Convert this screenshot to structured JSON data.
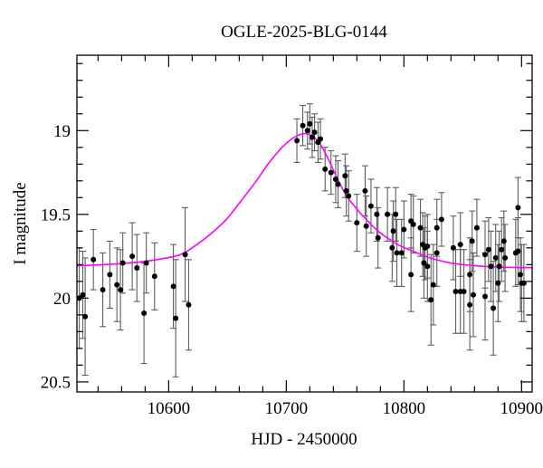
{
  "chart_data": {
    "type": "scatter",
    "title": "OGLE-2025-BLG-0144",
    "xlabel": "HJD - 2450000",
    "ylabel": "I magnitude",
    "xlim": [
      10522,
      10909
    ],
    "ylim": [
      20.56,
      18.55
    ],
    "y_inverted": true,
    "grid": false,
    "legend": "none",
    "x_major_ticks": [
      {
        "v": 10600,
        "label": "10600"
      },
      {
        "v": 10700,
        "label": "10700"
      },
      {
        "v": 10800,
        "label": "10800"
      },
      {
        "v": 10900,
        "label": "10900"
      }
    ],
    "x_minor_step": 20,
    "y_major_ticks": [
      {
        "v": 19.0,
        "label": "19"
      },
      {
        "v": 19.5,
        "label": "19.5"
      },
      {
        "v": 20.0,
        "label": "20"
      },
      {
        "v": 20.5,
        "label": "20.5"
      }
    ],
    "y_minor_step": 0.1,
    "colors": {
      "model_curve": "#ff00ff",
      "data_point": "#000000",
      "error_bar": "#5e5e5e",
      "frame": "#000000",
      "background": "#ffffff"
    },
    "model_curve": [
      [
        10522,
        19.807
      ],
      [
        10545,
        19.8
      ],
      [
        10570,
        19.788
      ],
      [
        10590,
        19.77
      ],
      [
        10610,
        19.74
      ],
      [
        10623,
        19.685
      ],
      [
        10636,
        19.615
      ],
      [
        10649,
        19.53
      ],
      [
        10661,
        19.425
      ],
      [
        10674,
        19.305
      ],
      [
        10685,
        19.195
      ],
      [
        10695,
        19.11
      ],
      [
        10703,
        19.058
      ],
      [
        10710,
        19.028
      ],
      [
        10716,
        19.018
      ],
      [
        10722,
        19.032
      ],
      [
        10728,
        19.072
      ],
      [
        10735,
        19.16
      ],
      [
        10742,
        19.265
      ],
      [
        10748,
        19.35
      ],
      [
        10754,
        19.415
      ],
      [
        10762,
        19.485
      ],
      [
        10770,
        19.545
      ],
      [
        10778,
        19.6
      ],
      [
        10788,
        19.65
      ],
      [
        10796,
        19.685
      ],
      [
        10806,
        19.715
      ],
      [
        10814,
        19.738
      ],
      [
        10826,
        19.768
      ],
      [
        10842,
        19.793
      ],
      [
        10858,
        19.805
      ],
      [
        10875,
        19.813
      ],
      [
        10892,
        19.817
      ],
      [
        10909,
        19.818
      ]
    ],
    "points": [
      [
        10524,
        20.0,
        0.3
      ],
      [
        10527,
        19.98,
        0.26
      ],
      [
        10529,
        20.11,
        0.35
      ],
      [
        10536,
        19.77,
        0.18
      ],
      [
        10544,
        19.95,
        0.22
      ],
      [
        10550,
        19.86,
        0.2
      ],
      [
        10556,
        19.92,
        0.22
      ],
      [
        10559,
        19.95,
        0.24
      ],
      [
        10561,
        19.79,
        0.18
      ],
      [
        10569,
        19.75,
        0.2
      ],
      [
        10573,
        19.82,
        0.2
      ],
      [
        10579,
        20.09,
        0.3
      ],
      [
        10581,
        19.79,
        0.18
      ],
      [
        10588,
        19.87,
        0.2
      ],
      [
        10604,
        19.93,
        0.25
      ],
      [
        10606,
        20.12,
        0.35
      ],
      [
        10614,
        19.74,
        0.28
      ],
      [
        10617,
        20.04,
        0.27
      ],
      [
        10709,
        19.06,
        0.13
      ],
      [
        10714,
        18.97,
        0.12
      ],
      [
        10718,
        19.0,
        0.11
      ],
      [
        10720,
        18.96,
        0.12
      ],
      [
        10722,
        19.04,
        0.12
      ],
      [
        10724,
        19.01,
        0.11
      ],
      [
        10727,
        19.07,
        0.12
      ],
      [
        10729,
        19.05,
        0.12
      ],
      [
        10733,
        19.23,
        0.13
      ],
      [
        10738,
        19.25,
        0.13
      ],
      [
        10742,
        19.29,
        0.14
      ],
      [
        10744,
        19.32,
        0.14
      ],
      [
        10750,
        19.27,
        0.13
      ],
      [
        10751,
        19.36,
        0.15
      ],
      [
        10753,
        19.39,
        0.15
      ],
      [
        10760,
        19.55,
        0.17
      ],
      [
        10767,
        19.36,
        0.15
      ],
      [
        10768,
        19.57,
        0.18
      ],
      [
        10772,
        19.45,
        0.16
      ],
      [
        10777,
        19.5,
        0.16
      ],
      [
        10778,
        19.64,
        0.18
      ],
      [
        10786,
        19.5,
        0.16
      ],
      [
        10790,
        19.7,
        0.2
      ],
      [
        10791,
        19.6,
        0.18
      ],
      [
        10793,
        19.5,
        0.16
      ],
      [
        10794,
        19.73,
        0.2
      ],
      [
        10798,
        19.73,
        0.2
      ],
      [
        10800,
        19.59,
        0.17
      ],
      [
        10806,
        19.54,
        0.16
      ],
      [
        10806,
        19.86,
        0.22
      ],
      [
        10808,
        19.56,
        0.17
      ],
      [
        10814,
        19.58,
        0.17
      ],
      [
        10816,
        19.68,
        0.19
      ],
      [
        10817,
        19.79,
        0.21
      ],
      [
        10818,
        19.7,
        0.19
      ],
      [
        10820,
        19.69,
        0.19
      ],
      [
        10820,
        19.81,
        0.21
      ],
      [
        10823,
        20.01,
        0.27
      ],
      [
        10825,
        19.92,
        0.24
      ],
      [
        10828,
        19.58,
        0.17
      ],
      [
        10828,
        19.73,
        0.2
      ],
      [
        10832,
        19.53,
        0.16
      ],
      [
        10842,
        19.7,
        0.19
      ],
      [
        10844,
        19.96,
        0.25
      ],
      [
        10848,
        19.68,
        0.19
      ],
      [
        10848,
        19.96,
        0.25
      ],
      [
        10851,
        19.96,
        0.25
      ],
      [
        10856,
        19.86,
        0.22
      ],
      [
        10856,
        20.04,
        0.27
      ],
      [
        10858,
        19.66,
        0.18
      ],
      [
        10859,
        19.98,
        0.25
      ],
      [
        10862,
        19.58,
        0.17
      ],
      [
        10869,
        19.74,
        0.2
      ],
      [
        10869,
        19.99,
        0.26
      ],
      [
        10872,
        19.71,
        0.19
      ],
      [
        10874,
        19.81,
        0.21
      ],
      [
        10876,
        20.06,
        0.28
      ],
      [
        10878,
        19.76,
        0.2
      ],
      [
        10880,
        19.91,
        0.23
      ],
      [
        10881,
        19.81,
        0.21
      ],
      [
        10883,
        19.71,
        0.19
      ],
      [
        10885,
        19.66,
        0.18
      ],
      [
        10886,
        19.76,
        0.2
      ],
      [
        10895,
        19.73,
        0.2
      ],
      [
        10897,
        19.46,
        0.18
      ],
      [
        10897,
        19.72,
        0.2
      ],
      [
        10899,
        19.86,
        0.22
      ],
      [
        10900,
        19.91,
        0.23
      ],
      [
        10902,
        19.91,
        0.23
      ]
    ]
  }
}
